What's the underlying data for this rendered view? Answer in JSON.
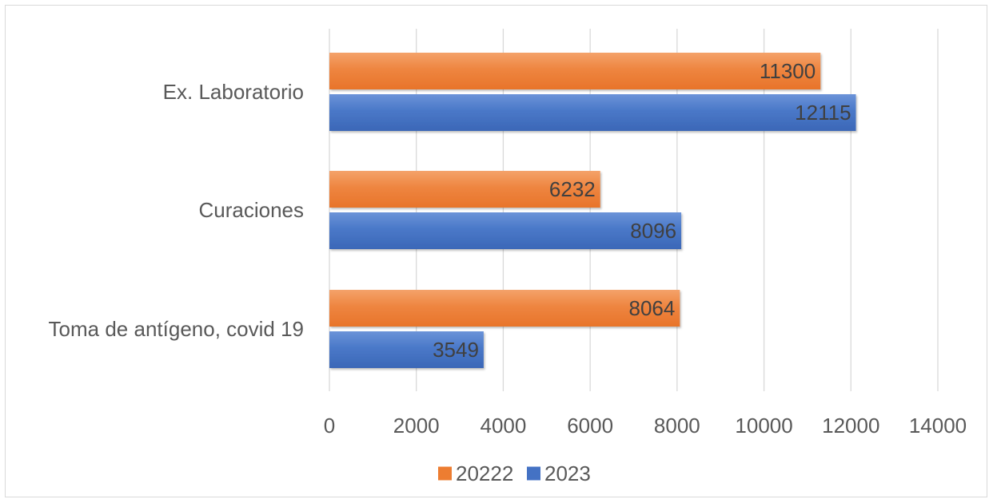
{
  "chart_data": {
    "type": "bar",
    "orientation": "horizontal",
    "title": "",
    "xlabel": "",
    "ylabel": "",
    "categories": [
      "Ex. Laboratorio",
      "Curaciones",
      "Toma de antígeno, covid 19"
    ],
    "series": [
      {
        "name": "20222",
        "color": "#ed7d31",
        "values": [
          11300,
          6232,
          8064
        ]
      },
      {
        "name": "2023",
        "color": "#4472c4",
        "values": [
          12115,
          8096,
          3549
        ]
      }
    ],
    "xlim": [
      0,
      14000
    ],
    "x_ticks": [
      "0",
      "2000",
      "4000",
      "6000",
      "8000",
      "10000",
      "12000",
      "14000"
    ],
    "grid": "vertical",
    "legend_position": "bottom",
    "data_labels": "inside-end"
  }
}
